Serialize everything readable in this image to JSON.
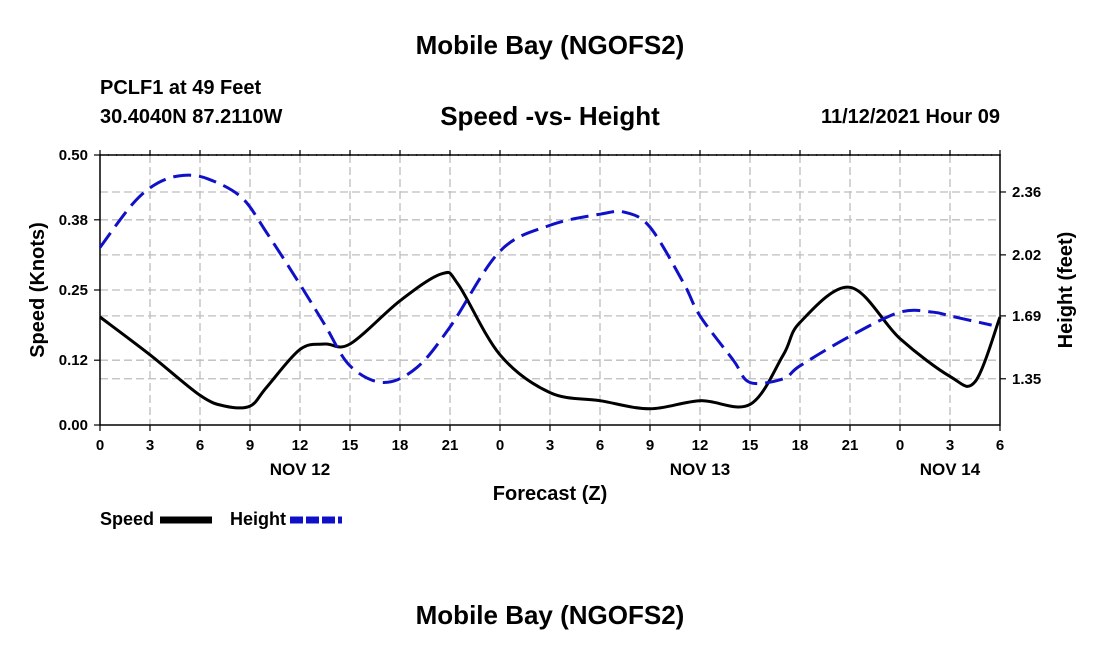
{
  "header": {
    "title": "Mobile Bay (NGOFS2)",
    "station": "PCLF1 at 49 Feet",
    "coords": "30.4040N  87.2110W",
    "subtitle": "Speed -vs- Height",
    "datetime": "11/12/2021 Hour 09"
  },
  "footer": {
    "title": "Mobile Bay (NGOFS2)"
  },
  "chart_data": {
    "type": "line",
    "title": "Speed -vs- Height",
    "xlabel": "Forecast (Z)",
    "ylabel_left": "Speed (Knots)",
    "ylabel_right": "Height (feet)",
    "x_range": [
      0,
      54
    ],
    "x_ticks": [
      0,
      3,
      6,
      9,
      12,
      15,
      18,
      21,
      24,
      27,
      30,
      33,
      36,
      39,
      42,
      45,
      48,
      51,
      54
    ],
    "x_tick_labels": [
      "0",
      "3",
      "6",
      "9",
      "12",
      "15",
      "18",
      "21",
      "0",
      "3",
      "6",
      "9",
      "12",
      "15",
      "18",
      "21",
      "0",
      "3",
      "6"
    ],
    "date_labels": [
      {
        "x": 12,
        "label": "NOV 12"
      },
      {
        "x": 36,
        "label": "NOV 13"
      },
      {
        "x": 51,
        "label": "NOV 14"
      }
    ],
    "y_left": {
      "range": [
        0,
        0.5
      ],
      "ticks": [
        0,
        0.12,
        0.25,
        0.38,
        0.5
      ],
      "tick_labels": [
        "0.00",
        "0.12",
        "0.25",
        "0.38",
        "0.50"
      ]
    },
    "y_right": {
      "range": [
        1.1,
        2.56
      ],
      "ticks": [
        1.35,
        1.69,
        2.02,
        2.36
      ],
      "tick_labels": [
        "1.35",
        "1.69",
        "2.02",
        "2.36"
      ]
    },
    "grid": true,
    "legend": "bottom-left",
    "series": [
      {
        "name": "Speed",
        "axis": "left",
        "color": "#000000",
        "dash": "solid",
        "x": [
          0,
          3,
          6,
          7.5,
          9,
          10,
          12,
          13.5,
          15,
          18,
          20.5,
          21.5,
          24,
          27,
          30,
          33,
          36,
          39,
          41,
          42,
          45,
          48,
          51,
          52.5,
          54
        ],
        "values": [
          0.2,
          0.13,
          0.055,
          0.035,
          0.035,
          0.07,
          0.14,
          0.15,
          0.15,
          0.23,
          0.28,
          0.26,
          0.13,
          0.06,
          0.045,
          0.03,
          0.045,
          0.038,
          0.13,
          0.19,
          0.255,
          0.16,
          0.09,
          0.08,
          0.2
        ]
      },
      {
        "name": "Height",
        "axis": "right",
        "color": "#1010c8",
        "dash": "dashed",
        "x": [
          0,
          2,
          3.5,
          5,
          6.5,
          8.5,
          10,
          12,
          13.5,
          15,
          17,
          19,
          21,
          24,
          27,
          30,
          31.5,
          33,
          35,
          36,
          38,
          39,
          41,
          42,
          45,
          48,
          50,
          51,
          52.5,
          53.5
        ],
        "values": [
          2.06,
          2.3,
          2.41,
          2.45,
          2.43,
          2.33,
          2.14,
          1.86,
          1.64,
          1.42,
          1.33,
          1.41,
          1.63,
          2.04,
          2.18,
          2.24,
          2.25,
          2.17,
          1.87,
          1.69,
          1.45,
          1.33,
          1.35,
          1.42,
          1.58,
          1.71,
          1.71,
          1.69,
          1.66,
          1.64
        ]
      }
    ]
  }
}
